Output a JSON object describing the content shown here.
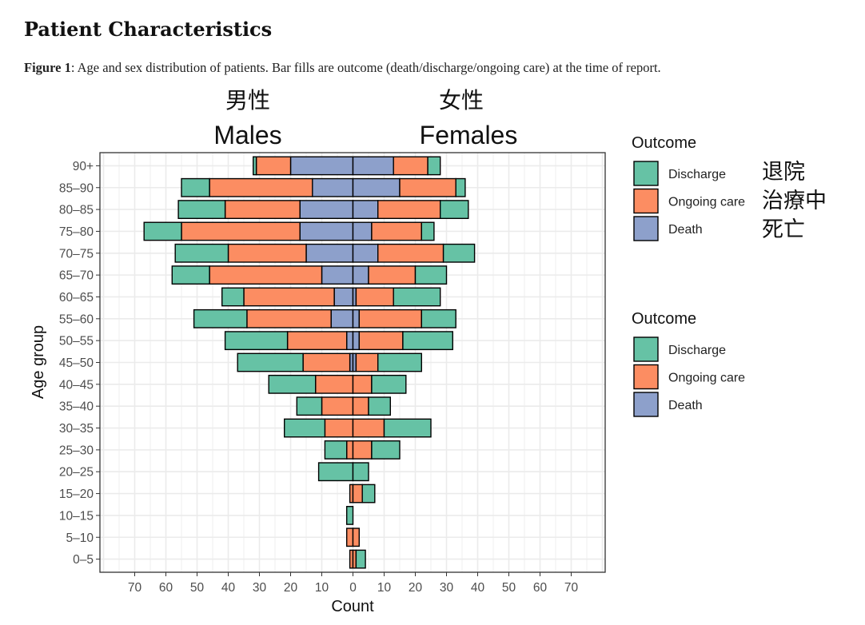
{
  "section_title": "Patient Characteristics",
  "caption": {
    "label": "Figure 1",
    "text": ": Age and sex distribution of patients. Bar fills are outcome (death/discharge/ongoing care) at the time of report."
  },
  "headers": {
    "males_jp": "男性",
    "males_en": "Males",
    "females_jp": "女性",
    "females_en": "Females"
  },
  "legend_annotations_jp": [
    "退院",
    "治療中",
    "死亡"
  ],
  "colors": {
    "Discharge": "#66c2a5",
    "Ongoing care": "#fc8d62",
    "Death": "#8da0cb",
    "grid": "#ebebeb",
    "outline": "#000000"
  },
  "chart_data": {
    "type": "bar",
    "orientation": "horizontal-diverging",
    "xlabel": "Count",
    "ylabel": "Age group",
    "xlim": [
      -80,
      80
    ],
    "x_ticks": [
      -70,
      -60,
      -50,
      -40,
      -30,
      -20,
      -10,
      0,
      10,
      20,
      30,
      40,
      50,
      60,
      70
    ],
    "x_tick_labels": [
      "70",
      "60",
      "50",
      "40",
      "30",
      "20",
      "10",
      "0",
      "10",
      "20",
      "30",
      "40",
      "50",
      "60",
      "70"
    ],
    "grid": true,
    "legend_placement": "right",
    "legends": [
      {
        "title": "Outcome",
        "items": [
          "Discharge",
          "Ongoing care",
          "Death"
        ]
      },
      {
        "title": "Outcome",
        "items": [
          "Discharge",
          "Ongoing care",
          "Death"
        ]
      }
    ],
    "stack_order": [
      "Death",
      "Ongoing care",
      "Discharge"
    ],
    "categories": [
      "0–5",
      "5–10",
      "10–15",
      "15–20",
      "20–25",
      "25–30",
      "30–35",
      "35–40",
      "40–45",
      "45–50",
      "50–55",
      "55–60",
      "60–65",
      "65–70",
      "70–75",
      "75–80",
      "80–85",
      "85–90",
      "90+"
    ],
    "series": [
      {
        "name": "Males",
        "direction": "left",
        "Death": [
          0,
          0,
          0,
          0,
          0,
          0,
          0,
          0,
          0,
          1,
          2,
          7,
          6,
          10,
          15,
          17,
          17,
          13,
          20
        ],
        "Ongoing care": [
          1,
          2,
          0,
          1,
          0,
          2,
          9,
          10,
          12,
          15,
          19,
          27,
          29,
          36,
          25,
          38,
          24,
          33,
          11
        ],
        "Discharge": [
          0,
          0,
          2,
          0,
          11,
          7,
          13,
          8,
          15,
          21,
          20,
          17,
          7,
          12,
          17,
          12,
          15,
          9,
          1
        ]
      },
      {
        "name": "Females",
        "direction": "right",
        "Death": [
          0,
          0,
          0,
          0,
          0,
          0,
          0,
          0,
          0,
          1,
          2,
          2,
          1,
          5,
          8,
          6,
          8,
          15,
          13
        ],
        "Ongoing care": [
          1,
          2,
          0,
          3,
          0,
          6,
          10,
          5,
          6,
          7,
          14,
          20,
          12,
          15,
          21,
          16,
          20,
          18,
          11
        ],
        "Discharge": [
          3,
          0,
          0,
          4,
          5,
          9,
          15,
          7,
          11,
          14,
          16,
          11,
          15,
          10,
          10,
          4,
          9,
          3,
          4
        ]
      }
    ]
  }
}
